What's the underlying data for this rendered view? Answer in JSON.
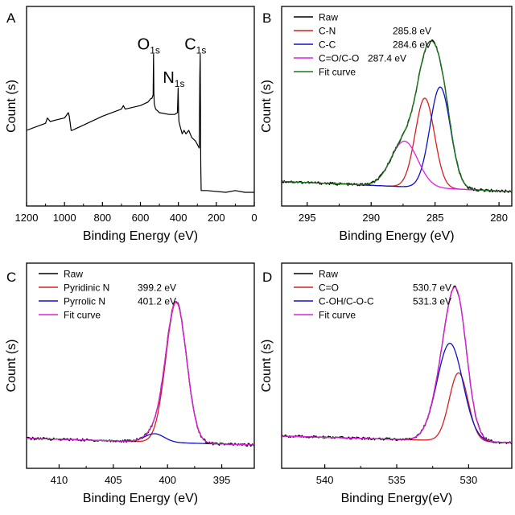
{
  "chart_data": [
    {
      "panel": "A",
      "type": "line",
      "xlabel": "Binding Energy (eV)",
      "ylabel": "Count (s)",
      "xlim": [
        1200,
        0
      ],
      "ylim": [
        0,
        100
      ],
      "xticks": [
        1200,
        1000,
        800,
        600,
        400,
        200,
        0
      ],
      "annotations": [
        {
          "text": "O",
          "sub": "1s",
          "x": 531,
          "y": 83
        },
        {
          "text": "N",
          "sub": "1s",
          "x": 399,
          "y": 64
        },
        {
          "text": "C",
          "sub": "1s",
          "x": 285,
          "y": 83
        }
      ],
      "series": [
        {
          "color": "#000000",
          "x": [
            1200,
            1150,
            1100,
            1090,
            1075,
            1040,
            1000,
            980,
            975,
            965,
            960,
            940,
            900,
            800,
            700,
            690,
            680,
            600,
            560,
            545,
            540,
            533,
            531,
            529,
            527,
            520,
            500,
            450,
            420,
            405,
            401,
            399,
            397,
            390,
            380,
            370,
            360,
            345,
            330,
            310,
            300,
            290,
            287,
            285,
            283,
            282,
            280,
            250,
            150,
            100,
            50,
            0
          ],
          "y": [
            40,
            42,
            44,
            47,
            45,
            46,
            47,
            50,
            48,
            40,
            40,
            41,
            43,
            48,
            52,
            54,
            52,
            54,
            56,
            58,
            58,
            60,
            83,
            62,
            55,
            52,
            50,
            49,
            49,
            50,
            64,
            50,
            45,
            42,
            38,
            40,
            38,
            40,
            36,
            34,
            32,
            30,
            70,
            83,
            40,
            20,
            6,
            6,
            5,
            6,
            5,
            5
          ]
        }
      ]
    },
    {
      "panel": "B",
      "type": "line",
      "xlabel": "Binding Energy (eV)",
      "ylabel": "Count (s)",
      "xlim": [
        297,
        279
      ],
      "ylim": [
        0,
        100
      ],
      "xticks": [
        295,
        290,
        285,
        280
      ],
      "legend": [
        {
          "label": "Raw",
          "value": "",
          "color": "#000000"
        },
        {
          "label": "C-N",
          "value": "285.8 eV",
          "color": "#d42020"
        },
        {
          "label": "C-C",
          "value": "284.6 eV",
          "color": "#1010c8"
        },
        {
          "label": "C=O/C-O",
          "value": "287.4 eV",
          "color": "#e020e0"
        },
        {
          "label": "Fit curve",
          "value": "",
          "color": "#1a7a1a"
        }
      ],
      "peaks": [
        {
          "name": "C-N",
          "center": 285.8,
          "height": 53,
          "sigma": 0.75
        },
        {
          "name": "C-C",
          "center": 284.6,
          "height": 60,
          "sigma": 0.8
        },
        {
          "name": "C=O/C-O",
          "center": 287.4,
          "height": 27,
          "sigma": 1.05
        }
      ],
      "baseline": {
        "left": 6,
        "right": 0
      }
    },
    {
      "panel": "C",
      "type": "line",
      "xlabel": "Binding Energy (eV)",
      "ylabel": "Count (s)",
      "xlim": [
        413,
        392
      ],
      "ylim": [
        0,
        100
      ],
      "xticks": [
        410,
        405,
        400,
        395
      ],
      "legend": [
        {
          "label": "Raw",
          "value": "",
          "color": "#000000"
        },
        {
          "label": "Pyridinic N",
          "value": "399.2 eV",
          "color": "#d42020"
        },
        {
          "label": "Pyrrolic N",
          "value": "401.2 eV",
          "color": "#1010c8"
        },
        {
          "label": "Fit curve",
          "value": "",
          "color": "#e020e0"
        }
      ],
      "peaks": [
        {
          "name": "Pyridinic N",
          "center": 399.2,
          "height": 84,
          "sigma": 0.95
        },
        {
          "name": "Pyrrolic N",
          "center": 401.2,
          "height": 5,
          "sigma": 0.9
        }
      ],
      "baseline": {
        "left": 4,
        "right": 0
      }
    },
    {
      "panel": "D",
      "type": "line",
      "xlabel": "Binding Energy(eV)",
      "ylabel": "Count (s)",
      "xlim": [
        543,
        527
      ],
      "ylim": [
        0,
        100
      ],
      "xticks": [
        540,
        535,
        530
      ],
      "legend": [
        {
          "label": "Raw",
          "value": "",
          "color": "#000000"
        },
        {
          "label": "C=O",
          "value": "530.7 eV",
          "color": "#d42020"
        },
        {
          "label": "C-OH/C-O-C",
          "value": "531.3 eV",
          "color": "#1010c8"
        },
        {
          "label": "Fit curve",
          "value": "",
          "color": "#e020e0"
        }
      ],
      "peaks": [
        {
          "name": "C=O",
          "center": 530.7,
          "height": 42,
          "sigma": 0.65
        },
        {
          "name": "C-OH/C-O-C",
          "center": 531.3,
          "height": 60,
          "sigma": 0.9
        }
      ],
      "baseline": {
        "left": 4,
        "right": 0
      }
    }
  ]
}
